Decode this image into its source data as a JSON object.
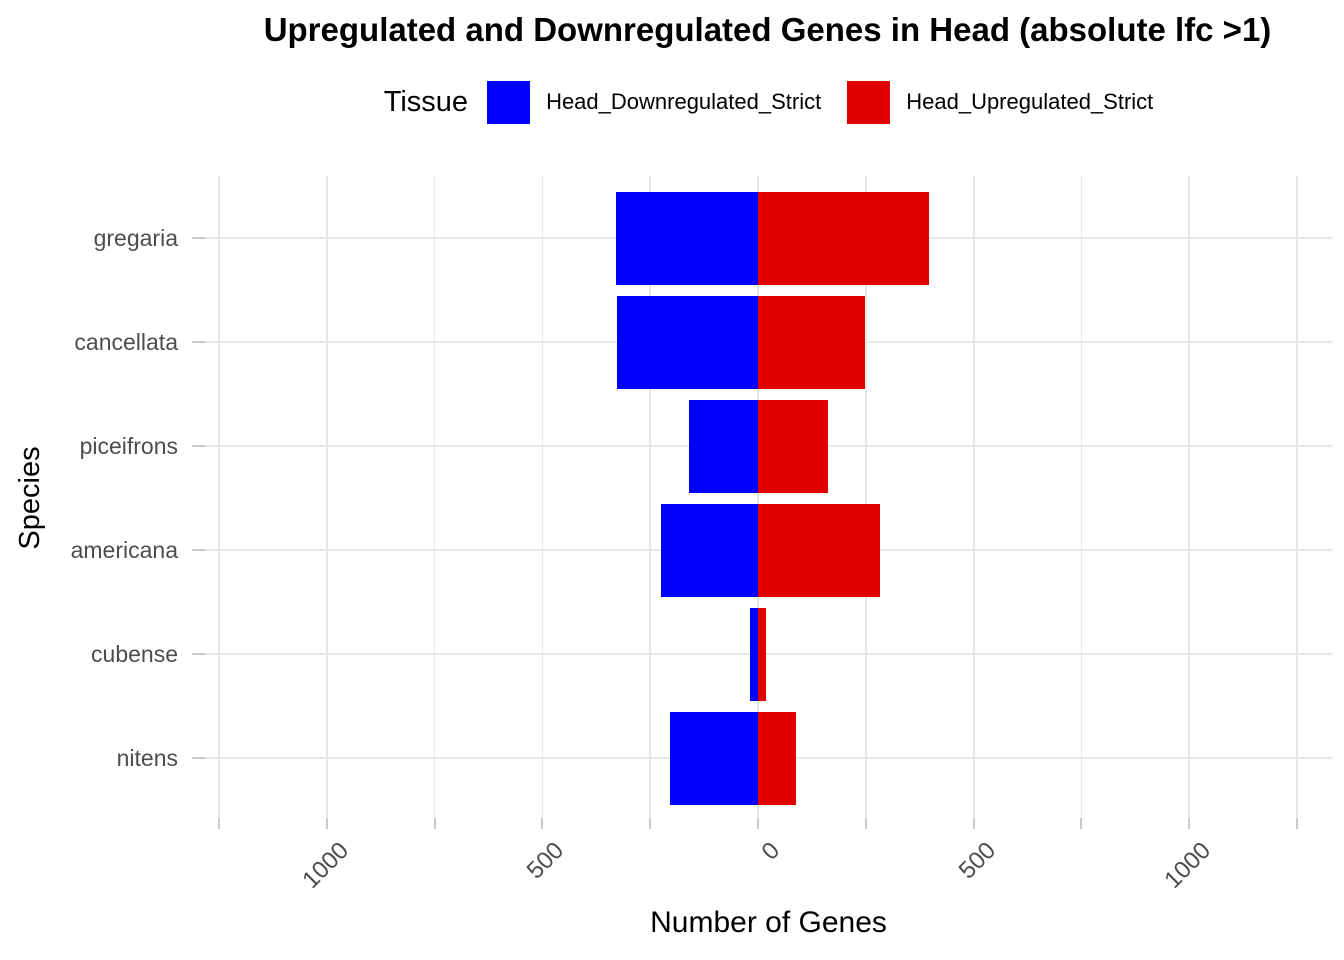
{
  "title": "Upregulated and Downregulated Genes in Head (absolute lfc >1)",
  "legend": {
    "title": "Tissue",
    "items": [
      {
        "label": "Head_Downregulated_Strict",
        "color": "#0000ff"
      },
      {
        "label": "Head_Upregulated_Strict",
        "color": "#e10000"
      }
    ]
  },
  "axes": {
    "x_title": "Number of Genes",
    "y_title": "Species"
  },
  "chart_data": {
    "type": "bar",
    "orientation": "horizontal-diverging",
    "title": "Upregulated and Downregulated Genes in Head (absolute lfc >1)",
    "xlabel": "Number of Genes",
    "ylabel": "Species",
    "categories": [
      "gregaria",
      "cancellata",
      "piceifrons",
      "americana",
      "cubense",
      "nitens"
    ],
    "series": [
      {
        "name": "Head_Downregulated_Strict",
        "direction": "negative",
        "color": "#0000ff",
        "values": [
          330,
          328,
          160,
          225,
          18,
          205
        ]
      },
      {
        "name": "Head_Upregulated_Strict",
        "direction": "positive",
        "color": "#e10000",
        "values": [
          397,
          248,
          162,
          283,
          18,
          89
        ]
      }
    ],
    "x_ticks": {
      "values": [
        -1000,
        -500,
        0,
        500,
        1000
      ],
      "labels": [
        "1000",
        "500",
        "0",
        "500",
        "1000"
      ]
    },
    "grid_values": [
      -1250,
      -1000,
      -750,
      -500,
      -250,
      0,
      250,
      500,
      750,
      1000,
      1250
    ],
    "xlim": [
      -1283,
      1331
    ],
    "grid": true,
    "legend_position": "top",
    "bar_relative_width": 0.9
  },
  "colors": {
    "downregulated": "#0000ff",
    "upregulated": "#e10000",
    "gridline": "#e8e8e8",
    "tick_mark": "#c9c9c9",
    "axis_text": "#4d4d4d",
    "title_text": "#000000",
    "background": "#ffffff"
  }
}
